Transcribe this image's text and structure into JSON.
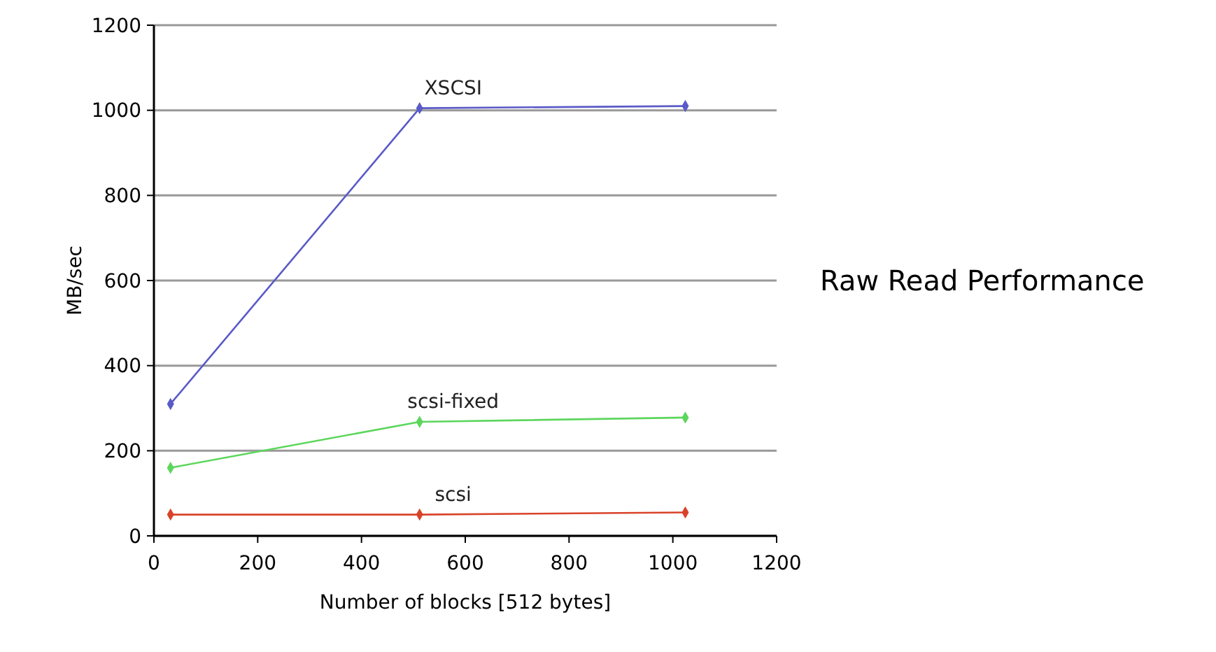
{
  "chart_data": {
    "type": "line",
    "title": "Raw Read Performance",
    "xlabel": "Number of blocks [512 bytes]",
    "ylabel": "MB/sec",
    "x": [
      32,
      512,
      1024
    ],
    "series": [
      {
        "name": "XSCSI",
        "color": "#5a5ac8",
        "values": [
          310,
          1005,
          1010
        ]
      },
      {
        "name": "scsi-fixed",
        "color": "#5cd65c",
        "values": [
          160,
          268,
          278
        ]
      },
      {
        "name": "scsi",
        "color": "#d9432a",
        "values": [
          50,
          50,
          55
        ]
      }
    ],
    "xlim": [
      0,
      1200
    ],
    "xticks": [
      0,
      200,
      400,
      600,
      800,
      1000,
      1200
    ],
    "ylim": [
      0,
      1200
    ],
    "yticks": [
      0,
      200,
      400,
      600,
      800,
      1000,
      1200
    ],
    "grid": "y",
    "marker": "diamond",
    "line_style": "solid"
  }
}
